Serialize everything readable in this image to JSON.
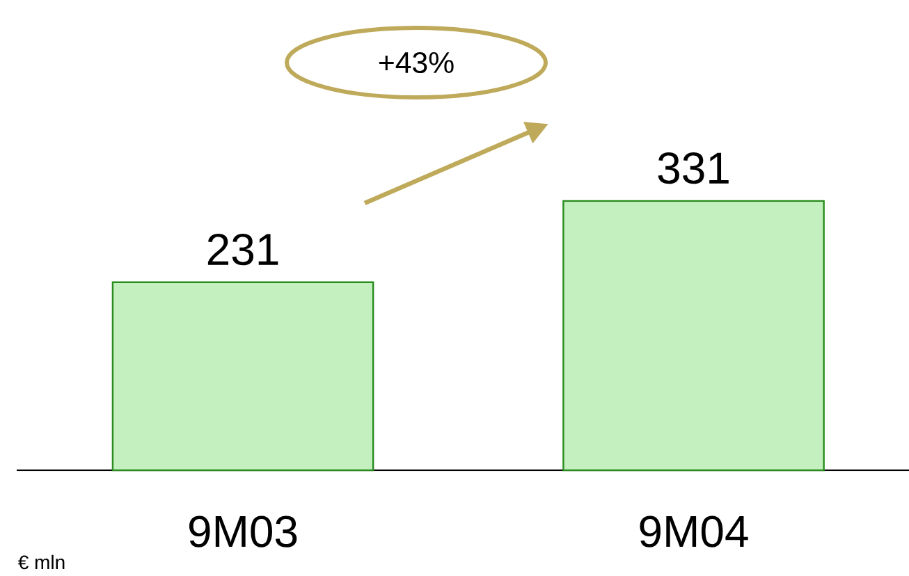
{
  "chart_data": {
    "type": "bar",
    "categories": [
      "9M03",
      "9M04"
    ],
    "values": [
      231,
      331
    ],
    "color": "#c4efbe",
    "data_labels": true,
    "annotations": [
      "+43%",
      "€ mln"
    ]
  }
}
